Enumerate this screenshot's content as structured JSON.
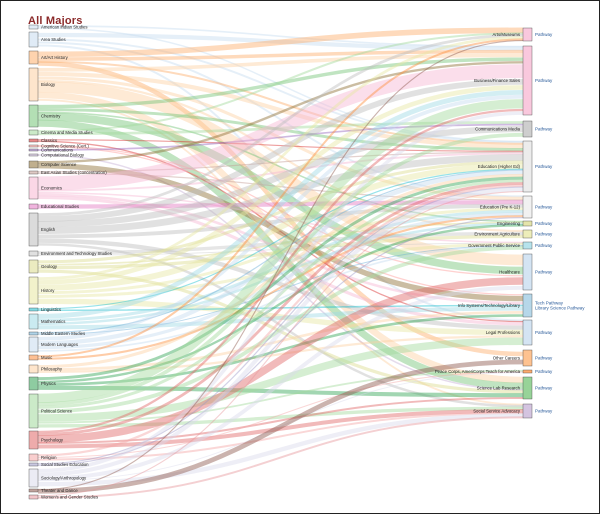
{
  "title": "All Majors",
  "pathway_label": "Pathway",
  "majors": [
    {
      "name": "American Indian Studies",
      "color": "#c6dbef"
    },
    {
      "name": "Area Studies",
      "color": "#c6dbef"
    },
    {
      "name": "Art/Art History",
      "color": "#fdae6b"
    },
    {
      "name": "Biology",
      "color": "#fdd0a2"
    },
    {
      "name": "Chemistry",
      "color": "#74c476"
    },
    {
      "name": "Cinema and Media Studies",
      "color": "#a1d99b"
    },
    {
      "name": "Classics",
      "color": "#d62728"
    },
    {
      "name": "Cognitive Science (Cert.)",
      "color": "#ff9896"
    },
    {
      "name": "Communications",
      "color": "#9467bd"
    },
    {
      "name": "Computational Biology",
      "color": "#c5b0d5"
    },
    {
      "name": "Computer Science",
      "color": "#8c6d31"
    },
    {
      "name": "East Asian Studies (concentration)",
      "color": "#c49c94"
    },
    {
      "name": "Economics",
      "color": "#f7b6d2"
    },
    {
      "name": "Educational Studies",
      "color": "#e377c2"
    },
    {
      "name": "English",
      "color": "#bdbdbd"
    },
    {
      "name": "Environment and Technology Studies",
      "color": "#c7c7c7"
    },
    {
      "name": "Geology",
      "color": "#dbdb8d"
    },
    {
      "name": "History",
      "color": "#e7e7a1"
    },
    {
      "name": "Linguistics",
      "color": "#17becf"
    },
    {
      "name": "Mathematics",
      "color": "#9edae5"
    },
    {
      "name": "Middle Eastern Studies",
      "color": "#6baed6"
    },
    {
      "name": "Modern Languages",
      "color": "#c6dbef"
    },
    {
      "name": "Music",
      "color": "#fd8d3c"
    },
    {
      "name": "Philosophy",
      "color": "#fdd0a2"
    },
    {
      "name": "Physics",
      "color": "#31a354"
    },
    {
      "name": "Political Science",
      "color": "#a1d99b"
    },
    {
      "name": "Psychology",
      "color": "#e06666"
    },
    {
      "name": "Religion",
      "color": "#f4a6a6"
    },
    {
      "name": "Social Studies Education",
      "color": "#9e9ac8"
    },
    {
      "name": "Sociology/Anthropology",
      "color": "#dadaeb"
    },
    {
      "name": "Theater and Dance",
      "color": "#8c564b"
    },
    {
      "name": "Women's and Gender Studies",
      "color": "#e7969c"
    }
  ],
  "pathways": [
    {
      "name": "Arts/Museums",
      "color": "#f7b6d2"
    },
    {
      "name": "Business/Finance Sales",
      "color": "#f7b6d2"
    },
    {
      "name": "Communications Media",
      "color": "#bdbdbd"
    },
    {
      "name": "Education (Higher Ed)",
      "color": "#e5e5e5"
    },
    {
      "name": "Education (Pre K-12)",
      "color": "#ececec"
    },
    {
      "name": "Engineering",
      "color": "#dbdb8d"
    },
    {
      "name": "Environment Agriculture",
      "color": "#e7e7a1"
    },
    {
      "name": "Government Public Service",
      "color": "#9edae5"
    },
    {
      "name": "Healthcare",
      "color": "#c6dbef"
    },
    {
      "name": "Info Systems/Technology/Library",
      "color": "#9ecae1"
    },
    {
      "name": "Legal Professions",
      "color": "#c6dbef"
    },
    {
      "name": "Other Careers",
      "color": "#fdae6b"
    },
    {
      "name": "Peace Corps, AmeriCorps Teach for America",
      "color": "#fd8d3c"
    },
    {
      "name": "Science Lab Research",
      "color": "#74c476"
    },
    {
      "name": "Social Service Advocacy",
      "color": "#c5b0d5"
    }
  ],
  "extra_pathway_labels": [
    "Tech Pathway",
    "Library Science Pathway"
  ]
}
